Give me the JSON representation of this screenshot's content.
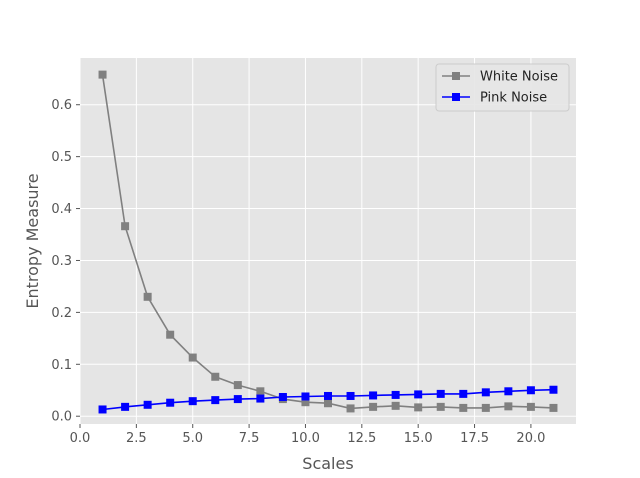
{
  "chart_data": {
    "type": "line",
    "title": "",
    "xlabel": "Scales",
    "ylabel": "Entropy Measure",
    "xlim": [
      0,
      22
    ],
    "ylim": [
      -0.015,
      0.69
    ],
    "xticks": [
      0.0,
      2.5,
      5.0,
      7.5,
      10.0,
      12.5,
      15.0,
      17.5,
      20.0
    ],
    "xtick_labels": [
      "0.0",
      "2.5",
      "5.0",
      "7.5",
      "10.0",
      "12.5",
      "15.0",
      "17.5",
      "20.0"
    ],
    "yticks": [
      0.0,
      0.1,
      0.2,
      0.3,
      0.4,
      0.5,
      0.6
    ],
    "ytick_labels": [
      "0.0",
      "0.1",
      "0.2",
      "0.3",
      "0.4",
      "0.5",
      "0.6"
    ],
    "grid": true,
    "legend_position": "top-right",
    "x": [
      1,
      2,
      3,
      4,
      5,
      6,
      7,
      8,
      9,
      10,
      11,
      12,
      13,
      14,
      15,
      16,
      17,
      18,
      19,
      20,
      21
    ],
    "series": [
      {
        "name": "White Noise",
        "color": "#808080",
        "marker": "square",
        "values": [
          0.658,
          0.366,
          0.23,
          0.157,
          0.113,
          0.076,
          0.06,
          0.048,
          0.033,
          0.027,
          0.025,
          0.015,
          0.018,
          0.02,
          0.017,
          0.018,
          0.016,
          0.016,
          0.019,
          0.018,
          0.016
        ]
      },
      {
        "name": "Pink Noise",
        "color": "#0000ff",
        "marker": "square",
        "values": [
          0.013,
          0.018,
          0.022,
          0.026,
          0.029,
          0.031,
          0.033,
          0.034,
          0.037,
          0.038,
          0.039,
          0.039,
          0.04,
          0.041,
          0.042,
          0.043,
          0.043,
          0.046,
          0.048,
          0.05,
          0.051
        ]
      }
    ]
  }
}
